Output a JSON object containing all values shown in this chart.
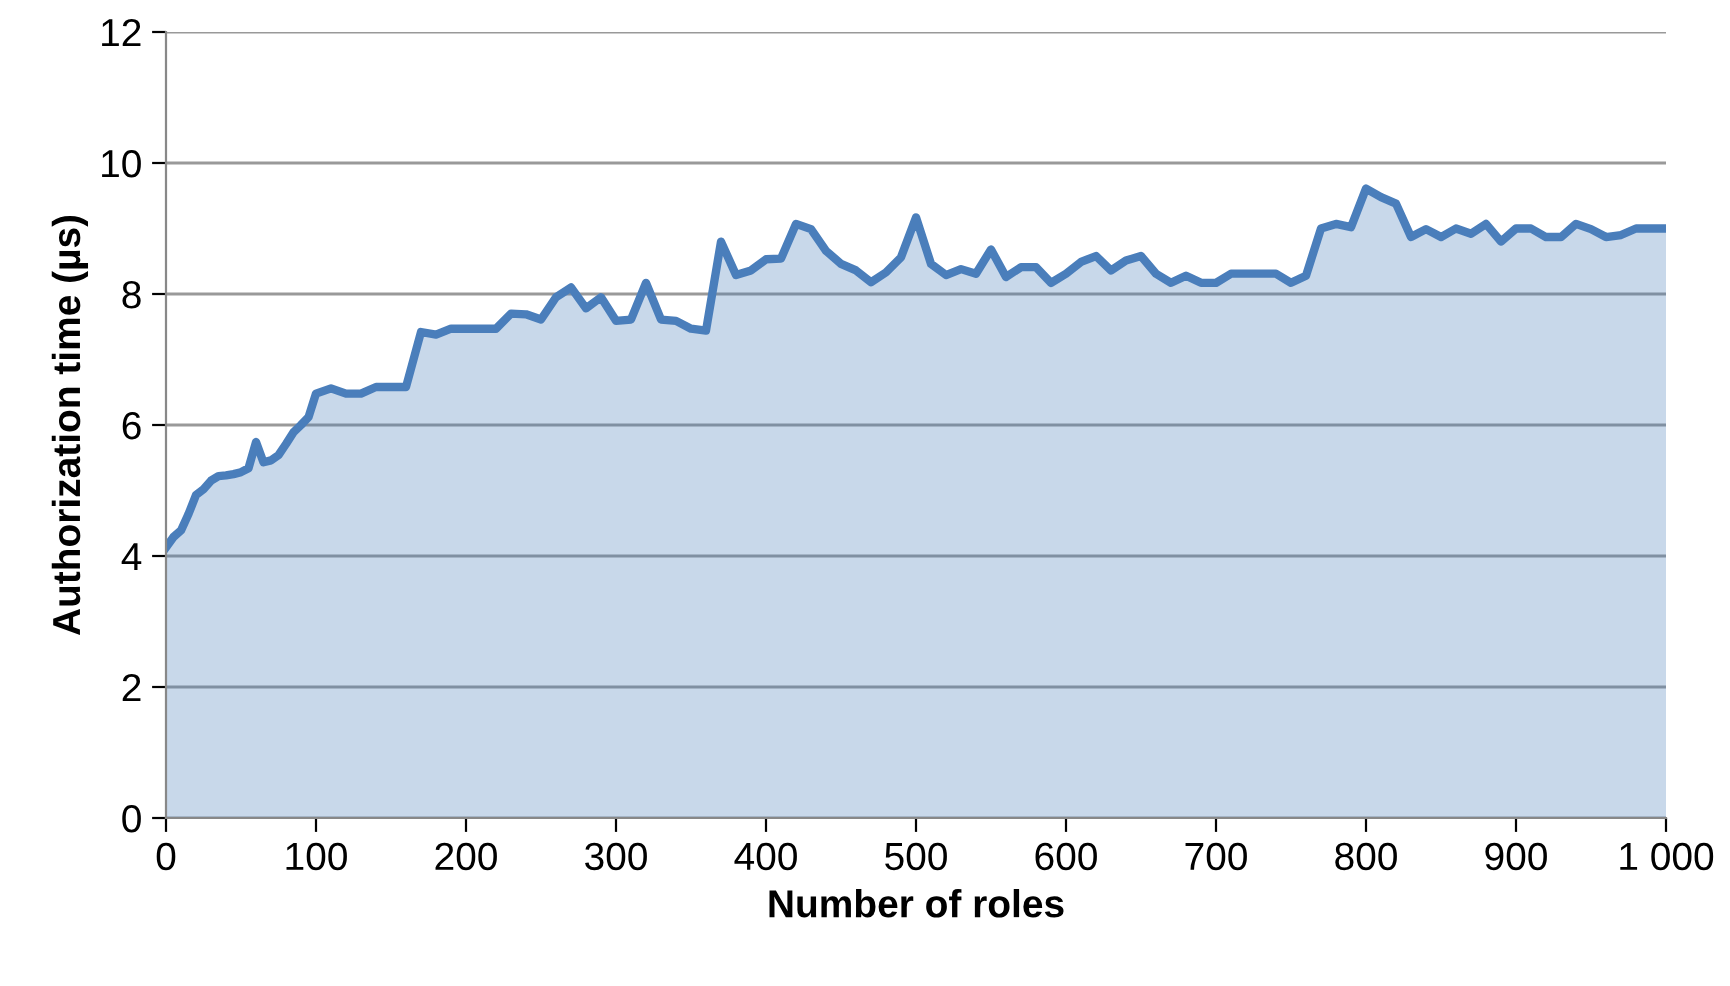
{
  "chart_data": {
    "type": "area",
    "xlabel": "Number of roles",
    "ylabel": "Authorization time (µs)",
    "x": [
      0,
      5,
      10,
      15,
      20,
      25,
      30,
      35,
      40,
      45,
      50,
      55,
      60,
      65,
      70,
      75,
      80,
      85,
      90,
      95,
      100,
      110,
      120,
      130,
      140,
      150,
      160,
      170,
      180,
      190,
      200,
      210,
      220,
      230,
      240,
      250,
      260,
      270,
      280,
      290,
      300,
      310,
      320,
      330,
      340,
      350,
      360,
      370,
      380,
      390,
      400,
      410,
      420,
      430,
      440,
      450,
      460,
      470,
      480,
      490,
      500,
      510,
      520,
      530,
      540,
      550,
      560,
      570,
      580,
      590,
      600,
      610,
      620,
      630,
      640,
      650,
      660,
      670,
      680,
      690,
      700,
      710,
      720,
      730,
      740,
      750,
      760,
      770,
      780,
      790,
      800,
      810,
      820,
      830,
      840,
      850,
      860,
      870,
      880,
      890,
      900,
      910,
      920,
      930,
      940,
      950,
      960,
      970,
      980,
      990,
      1000
    ],
    "series": [
      {
        "color": "#4a7ebb",
        "values": [
          4.13,
          4.29,
          4.39,
          4.64,
          4.93,
          5.02,
          5.15,
          5.22,
          5.23,
          5.25,
          5.28,
          5.34,
          5.74,
          5.43,
          5.46,
          5.54,
          5.71,
          5.89,
          6.0,
          6.12,
          6.48,
          6.56,
          6.48,
          6.48,
          6.58,
          6.58,
          6.58,
          7.42,
          7.38,
          7.47,
          7.47,
          7.47,
          7.47,
          7.7,
          7.69,
          7.61,
          7.95,
          8.1,
          7.78,
          7.95,
          7.59,
          7.61,
          8.17,
          7.61,
          7.59,
          7.47,
          7.44,
          8.8,
          8.29,
          8.36,
          8.53,
          8.54,
          9.07,
          8.99,
          8.66,
          8.46,
          8.36,
          8.18,
          8.33,
          8.56,
          9.17,
          8.46,
          8.29,
          8.38,
          8.31,
          8.68,
          8.26,
          8.41,
          8.41,
          8.17,
          8.31,
          8.49,
          8.58,
          8.36,
          8.51,
          8.58,
          8.31,
          8.17,
          8.28,
          8.17,
          8.17,
          8.31,
          8.31,
          8.31,
          8.31,
          8.17,
          8.28,
          9.0,
          9.07,
          9.02,
          9.61,
          9.48,
          9.38,
          8.87,
          8.99,
          8.87,
          9.0,
          8.92,
          9.07,
          8.8,
          9.0,
          9.0,
          8.87,
          8.87,
          9.07,
          8.99,
          8.87,
          8.9,
          9.0,
          9.0,
          9.0
        ]
      }
    ],
    "xlim": [
      0,
      1000
    ],
    "xticks": [
      0,
      100,
      200,
      300,
      400,
      500,
      600,
      700,
      800,
      900,
      {
        "value": 1000,
        "label": "1 000"
      }
    ],
    "ylim": [
      0,
      12
    ],
    "yticks": [
      0,
      2,
      4,
      6,
      8,
      10,
      12
    ],
    "grid": "y"
  }
}
